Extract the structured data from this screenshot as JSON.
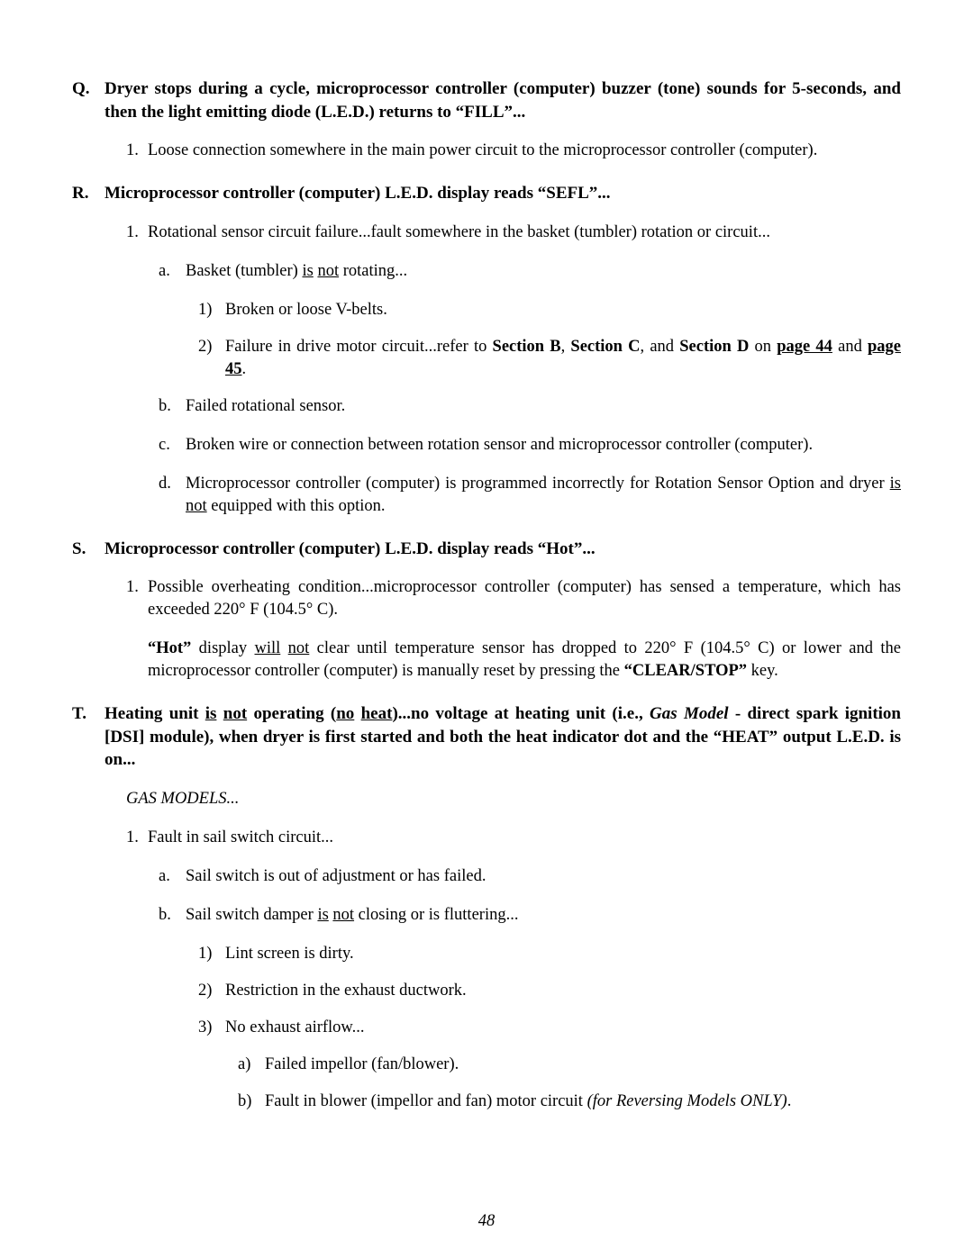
{
  "page_number": "48",
  "sections": {
    "Q": {
      "letter": "Q.",
      "title_parts": [
        {
          "t": "Dryer stops during a cycle, microprocessor controller (computer) buzzer (tone) sounds for 5-seconds, and then the light emitting diode (L.E.D.) returns to “FILL”...",
          "cls": ""
        }
      ],
      "items": {
        "i1": {
          "num": "1.",
          "txt": "Loose connection somewhere in the main power circuit to the microprocessor controller (computer)."
        }
      }
    },
    "R": {
      "letter": "R.",
      "title_parts": [
        {
          "t": "Microprocessor controller (computer) L.E.D. display reads “SEFL”...",
          "cls": ""
        }
      ],
      "items": {
        "i1": {
          "num": "1.",
          "txt": "Rotational sensor circuit failure...fault somewhere in the basket (tumbler) rotation or circuit...",
          "sub": {
            "a": {
              "let": "a.",
              "parts": [
                {
                  "t": "Basket (tumbler) ",
                  "cls": ""
                },
                {
                  "t": "is",
                  "cls": "ul"
                },
                {
                  "t": " ",
                  "cls": ""
                },
                {
                  "t": "not",
                  "cls": "ul"
                },
                {
                  "t": " rotating...",
                  "cls": ""
                }
              ],
              "ssub": {
                "s1": {
                  "num": "1)",
                  "parts": [
                    {
                      "t": "Broken or loose V-belts.",
                      "cls": ""
                    }
                  ]
                },
                "s2": {
                  "num": "2)",
                  "parts": [
                    {
                      "t": "Failure in drive motor circuit...refer to ",
                      "cls": ""
                    },
                    {
                      "t": "Section B",
                      "cls": "bold"
                    },
                    {
                      "t": ", ",
                      "cls": ""
                    },
                    {
                      "t": "Section C",
                      "cls": "bold"
                    },
                    {
                      "t": ", and ",
                      "cls": ""
                    },
                    {
                      "t": "Section D",
                      "cls": "bold"
                    },
                    {
                      "t": " on ",
                      "cls": ""
                    },
                    {
                      "t": "page 44",
                      "cls": "ul-b"
                    },
                    {
                      "t": " and ",
                      "cls": ""
                    },
                    {
                      "t": "page 45",
                      "cls": "ul-b"
                    },
                    {
                      "t": ".",
                      "cls": ""
                    }
                  ]
                }
              }
            },
            "b": {
              "let": "b.",
              "parts": [
                {
                  "t": "Failed rotational sensor.",
                  "cls": ""
                }
              ]
            },
            "c": {
              "let": "c.",
              "parts": [
                {
                  "t": "Broken wire or connection between rotation sensor and microprocessor controller (computer).",
                  "cls": ""
                }
              ]
            },
            "d": {
              "let": "d.",
              "parts": [
                {
                  "t": "Microprocessor controller (computer) is programmed incorrectly for Rotation Sensor Option and dryer ",
                  "cls": ""
                },
                {
                  "t": "is",
                  "cls": "ul"
                },
                {
                  "t": " ",
                  "cls": ""
                },
                {
                  "t": "not",
                  "cls": "ul"
                },
                {
                  "t": " equipped with this option.",
                  "cls": ""
                }
              ]
            }
          }
        }
      }
    },
    "S": {
      "letter": "S.",
      "title_parts": [
        {
          "t": "Microprocessor controller (computer) L.E.D. display reads “Hot”...",
          "cls": ""
        }
      ],
      "items": {
        "i1": {
          "num": "1.",
          "txt": "Possible overheating condition...microprocessor controller (computer) has sensed a temperature, which has exceeded 220° F (104.5° C)."
        }
      },
      "para": {
        "parts": [
          {
            "t": "“Hot”",
            "cls": "bold"
          },
          {
            "t": " display ",
            "cls": ""
          },
          {
            "t": "will",
            "cls": "ul"
          },
          {
            "t": " ",
            "cls": ""
          },
          {
            "t": "not",
            "cls": "ul"
          },
          {
            "t": " clear until temperature sensor has dropped to 220° F (104.5° C) or lower and the microprocessor controller (computer) is manually reset by pressing the ",
            "cls": ""
          },
          {
            "t": "“CLEAR/STOP”",
            "cls": "bold"
          },
          {
            "t": " key.",
            "cls": ""
          }
        ]
      }
    },
    "T": {
      "letter": "T.",
      "title_parts": [
        {
          "t": "Heating unit ",
          "cls": ""
        },
        {
          "t": "is",
          "cls": "ul"
        },
        {
          "t": " ",
          "cls": ""
        },
        {
          "t": "not",
          "cls": "ul"
        },
        {
          "t": " operating (",
          "cls": ""
        },
        {
          "t": "no",
          "cls": "ul"
        },
        {
          "t": " ",
          "cls": ""
        },
        {
          "t": "heat",
          "cls": "ul"
        },
        {
          "t": ")...no voltage at heating unit (i.e., ",
          "cls": ""
        },
        {
          "t": "Gas Model",
          "cls": "ital-b"
        },
        {
          "t": " - direct spark ignition [DSI] module), when dryer is first started and both the heat indicator dot and the “HEAT” output L.E.D. is on...",
          "cls": ""
        }
      ],
      "subhead": "GAS MODELS...",
      "items": {
        "i1": {
          "num": "1.",
          "txt": "Fault in sail switch circuit...",
          "sub": {
            "a": {
              "let": "a.",
              "parts": [
                {
                  "t": "Sail switch is out of adjustment or has failed.",
                  "cls": ""
                }
              ]
            },
            "b": {
              "let": "b.",
              "parts": [
                {
                  "t": "Sail switch damper ",
                  "cls": ""
                },
                {
                  "t": "is",
                  "cls": "ul"
                },
                {
                  "t": " ",
                  "cls": ""
                },
                {
                  "t": "not",
                  "cls": "ul"
                },
                {
                  "t": " closing or is fluttering...",
                  "cls": ""
                }
              ],
              "ssub": {
                "s1": {
                  "num": "1)",
                  "parts": [
                    {
                      "t": "Lint screen is dirty.",
                      "cls": ""
                    }
                  ]
                },
                "s2": {
                  "num": "2)",
                  "parts": [
                    {
                      "t": "Restriction in the exhaust ductwork.",
                      "cls": ""
                    }
                  ]
                },
                "s3": {
                  "num": "3)",
                  "parts": [
                    {
                      "t": "No exhaust airflow...",
                      "cls": ""
                    }
                  ],
                  "sssub": {
                    "x1": {
                      "let": "a)",
                      "parts": [
                        {
                          "t": "Failed impellor (fan/blower).",
                          "cls": ""
                        }
                      ]
                    },
                    "x2": {
                      "let": "b)",
                      "parts": [
                        {
                          "t": "Fault in blower (impellor and fan) motor circuit ",
                          "cls": ""
                        },
                        {
                          "t": "(for Reversing Models ONLY)",
                          "cls": "ital"
                        },
                        {
                          "t": ".",
                          "cls": ""
                        }
                      ]
                    }
                  }
                }
              }
            }
          }
        }
      }
    }
  }
}
